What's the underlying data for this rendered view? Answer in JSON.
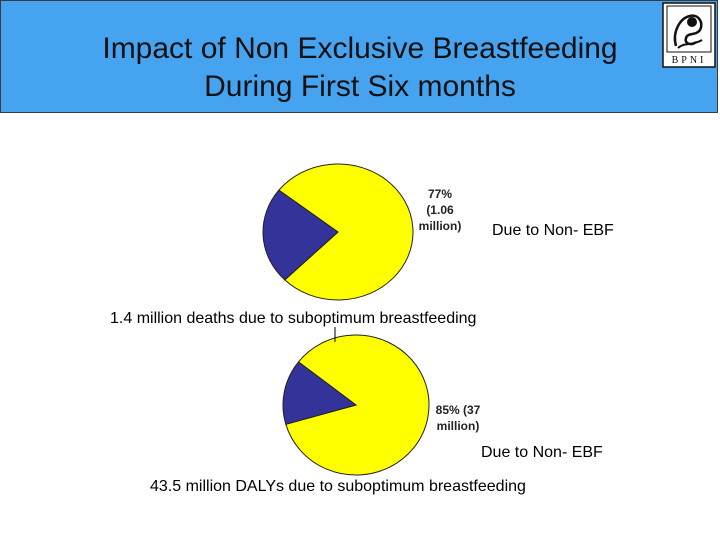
{
  "slide": {
    "title_line1": "Impact of Non Exclusive Breastfeeding",
    "title_line2": "During First Six months",
    "logo_text": "BPNI",
    "colors": {
      "header": "#46a3f0",
      "yellow": "#ffff00",
      "blue": "#333399"
    }
  },
  "chart_data": [
    {
      "type": "pie",
      "title": "1.4 million deaths due to suboptimum breastfeeding",
      "slices": [
        {
          "value": 77,
          "color": "#ffff00",
          "label_lines": [
            "77%",
            "(1.06",
            "million)"
          ]
        },
        {
          "value": 23,
          "color": "#333399",
          "label_lines": []
        }
      ],
      "annotation": "Due to Non- EBF"
    },
    {
      "type": "pie",
      "title": "43.5 million DALYs due to suboptimum breastfeeding",
      "slices": [
        {
          "value": 85,
          "color": "#ffff00",
          "label_lines": [
            "85% (37",
            "million)"
          ]
        },
        {
          "value": 15,
          "color": "#333399",
          "label_lines": []
        }
      ],
      "annotation": "Due to Non- EBF"
    }
  ]
}
